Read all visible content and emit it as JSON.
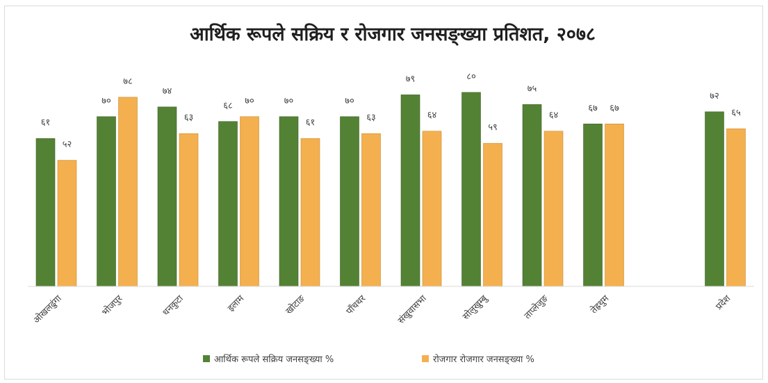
{
  "chart_data": {
    "type": "bar",
    "title": "आर्थिक रूपले सक्रिय र रोजगार जनसङ्ख्या प्रतिशत, २०७८",
    "xlabel": "",
    "ylabel": "",
    "ylim": [
      0,
      88
    ],
    "grid": false,
    "legend_position": "bottom",
    "categories": [
      "ओखलढुंगा",
      "भोजपुर",
      "धनकुटा",
      "इलाम",
      "खोटाङ",
      "पाँचथर",
      "संखुवासभा",
      "सोलुखुम्बु",
      "ताप्लेजुङ",
      "तेह्रथुम",
      "प्रदेश"
    ],
    "gap_before_last": true,
    "series": [
      {
        "name": "आर्थिक रूपले सक्रिय जनसङ्ख्या %",
        "color": "#548235",
        "values": [
          61,
          70,
          74,
          68,
          70,
          70,
          79,
          80,
          75,
          67,
          72
        ],
        "labels": [
          "६१",
          "७०",
          "७४",
          "६८",
          "७०",
          "७०",
          "७९",
          "८०",
          "७५",
          "६७",
          "७२"
        ]
      },
      {
        "name": "रोजगार रोजगार जनसङ्ख्या %",
        "color": "#f4b04f",
        "values": [
          52,
          78,
          63,
          70,
          61,
          63,
          64,
          59,
          64,
          67,
          65
        ],
        "labels": [
          "५२",
          "७८",
          "६३",
          "७०",
          "६१",
          "६३",
          "६४",
          "५९",
          "६४",
          "६७",
          "६५"
        ]
      }
    ]
  }
}
